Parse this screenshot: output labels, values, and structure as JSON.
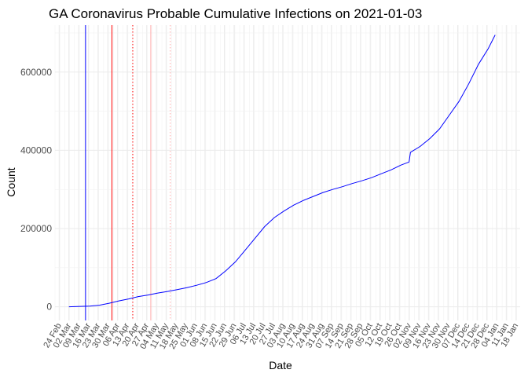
{
  "chart_data": {
    "type": "line",
    "title": "GA Coronavirus Probable Cumulative Infections on 2021-01-03",
    "xlabel": "Date",
    "ylabel": "Count",
    "xlim": [
      "2020-02-21",
      "2021-01-21"
    ],
    "ylim": [
      -35000,
      720000
    ],
    "grid": true,
    "legend": "none",
    "y_ticks": [
      0,
      200000,
      400000,
      600000
    ],
    "y_tick_labels": [
      "0",
      "200000",
      "400000",
      "600000"
    ],
    "x_ticks": [
      "2020-02-24",
      "2020-03-02",
      "2020-03-09",
      "2020-03-16",
      "2020-03-23",
      "2020-03-30",
      "2020-04-06",
      "2020-04-13",
      "2020-04-20",
      "2020-04-27",
      "2020-05-04",
      "2020-05-11",
      "2020-05-18",
      "2020-05-25",
      "2020-06-01",
      "2020-06-08",
      "2020-06-15",
      "2020-06-22",
      "2020-06-29",
      "2020-07-06",
      "2020-07-13",
      "2020-07-20",
      "2020-07-27",
      "2020-08-03",
      "2020-08-10",
      "2020-08-17",
      "2020-08-24",
      "2020-08-31",
      "2020-09-07",
      "2020-09-14",
      "2020-09-21",
      "2020-09-28",
      "2020-10-05",
      "2020-10-12",
      "2020-10-19",
      "2020-10-26",
      "2020-11-02",
      "2020-11-09",
      "2020-11-16",
      "2020-11-23",
      "2020-11-30",
      "2020-12-07",
      "2020-12-14",
      "2020-12-21",
      "2020-12-28",
      "2021-01-04",
      "2021-01-11",
      "2021-01-18"
    ],
    "x_tick_labels": [
      "24 Feb",
      "02 Mar",
      "09 Mar",
      "16 Mar",
      "23 Mar",
      "30 Mar",
      "06 Apr",
      "13 Apr",
      "20 Apr",
      "27 Apr",
      "04 May",
      "11 May",
      "18 May",
      "25 May",
      "01 Jun",
      "08 Jun",
      "15 Jun",
      "22 Jun",
      "29 Jun",
      "06 Jul",
      "13 Jul",
      "20 Jul",
      "27 Jul",
      "03 Aug",
      "10 Aug",
      "17 Aug",
      "24 Aug",
      "31 Aug",
      "07 Sep",
      "14 Sep",
      "21 Sep",
      "28 Sep",
      "05 Oct",
      "12 Oct",
      "19 Oct",
      "26 Oct",
      "02 Nov",
      "09 Nov",
      "16 Nov",
      "23 Nov",
      "30 Nov",
      "07 Dec",
      "14 Dec",
      "21 Dec",
      "28 Dec",
      "04 Jan",
      "11 Jan",
      "18 Jan"
    ],
    "series": [
      {
        "color": "#0000ff",
        "x": [
          "2020-03-02",
          "2020-03-10",
          "2020-03-17",
          "2020-03-24",
          "2020-03-31",
          "2020-04-07",
          "2020-04-14",
          "2020-04-21",
          "2020-04-28",
          "2020-05-05",
          "2020-05-12",
          "2020-05-19",
          "2020-05-26",
          "2020-06-02",
          "2020-06-09",
          "2020-06-16",
          "2020-06-23",
          "2020-06-30",
          "2020-07-07",
          "2020-07-14",
          "2020-07-21",
          "2020-07-28",
          "2020-08-04",
          "2020-08-11",
          "2020-08-18",
          "2020-08-25",
          "2020-09-01",
          "2020-09-08",
          "2020-09-15",
          "2020-09-22",
          "2020-09-29",
          "2020-10-06",
          "2020-10-13",
          "2020-10-20",
          "2020-10-27",
          "2020-11-02",
          "2020-11-03",
          "2020-11-10",
          "2020-11-17",
          "2020-11-24",
          "2020-12-01",
          "2020-12-08",
          "2020-12-15",
          "2020-12-22",
          "2020-12-29",
          "2021-01-03"
        ],
        "y": [
          0,
          1000,
          1500,
          4000,
          9000,
          15000,
          20000,
          26000,
          30000,
          35000,
          39000,
          44000,
          49000,
          55000,
          62000,
          72000,
          92000,
          115000,
          145000,
          175000,
          205000,
          228000,
          245000,
          260000,
          272000,
          282000,
          292000,
          300000,
          307000,
          315000,
          322000,
          330000,
          340000,
          350000,
          362000,
          370000,
          395000,
          410000,
          430000,
          455000,
          490000,
          525000,
          570000,
          620000,
          660000,
          695000
        ]
      }
    ],
    "reference_lines": [
      {
        "date": "2020-03-14",
        "color": "#0000ff",
        "style": "solid"
      },
      {
        "date": "2020-04-02",
        "color": "#ff0000",
        "style": "solid"
      },
      {
        "date": "2020-04-17",
        "color": "#ff0000",
        "style": "dotted"
      },
      {
        "date": "2020-04-30",
        "color": "#ffaaaa",
        "style": "solid"
      },
      {
        "date": "2020-05-14",
        "color": "#ffaaaa",
        "style": "dotted"
      }
    ]
  }
}
